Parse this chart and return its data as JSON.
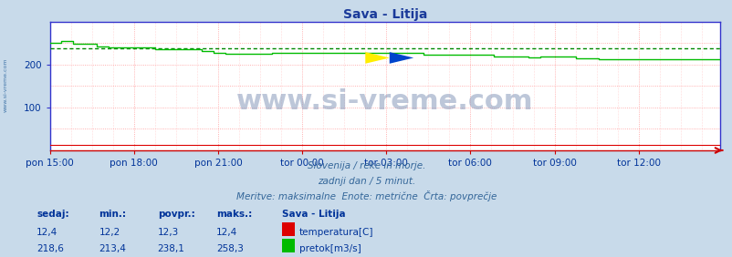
{
  "title": "Sava - Litija",
  "title_color": "#1a3a9a",
  "bg_color": "#c8daea",
  "plot_bg_color": "#ffffff",
  "grid_color_dotted": "#ff9999",
  "xlabel_ticks": [
    "pon 15:00",
    "pon 18:00",
    "pon 21:00",
    "tor 00:00",
    "tor 03:00",
    "tor 06:00",
    "tor 09:00",
    "tor 12:00"
  ],
  "xlabel_tick_positions": [
    0,
    36,
    72,
    108,
    144,
    180,
    216,
    252
  ],
  "ylim": [
    0,
    300
  ],
  "ytick_positions": [
    100,
    200
  ],
  "ytick_labels": [
    "100",
    "200"
  ],
  "total_points": 288,
  "flow_color": "#00bb00",
  "temp_color": "#dd0000",
  "avg_line_color": "#008800",
  "avg_line_value": 238.1,
  "spine_color_left": "#3333cc",
  "spine_color_bottom": "#cc0000",
  "watermark": "www.si-vreme.com",
  "watermark_color": "#8899bb",
  "watermark_alpha": 0.55,
  "watermark_fontsize": 22,
  "logo_yellow": "#ffee00",
  "logo_blue": "#0044cc",
  "sidebar_text": "www.si-vreme.com",
  "sidebar_color": "#4477aa",
  "footer_line1": "Slovenija / reke in morje.",
  "footer_line2": "zadnji dan / 5 minut.",
  "footer_line3": "Meritve: maksimalne  Enote: metrične  Črta: povprečje",
  "footer_color": "#336699",
  "legend_title": "Sava - Litija",
  "legend_color": "#003399",
  "stats_headers": [
    "sedaj:",
    "min.:",
    "povpr.:",
    "maks.:"
  ],
  "temp_stats": [
    "12,4",
    "12,2",
    "12,3",
    "12,4"
  ],
  "flow_stats": [
    "218,6",
    "213,4",
    "238,1",
    "258,3"
  ],
  "temp_label": "temperatura[C]",
  "flow_label": "pretok[m3/s]",
  "stats_color": "#003399",
  "tick_color": "#003399",
  "tick_fontsize": 7.5
}
